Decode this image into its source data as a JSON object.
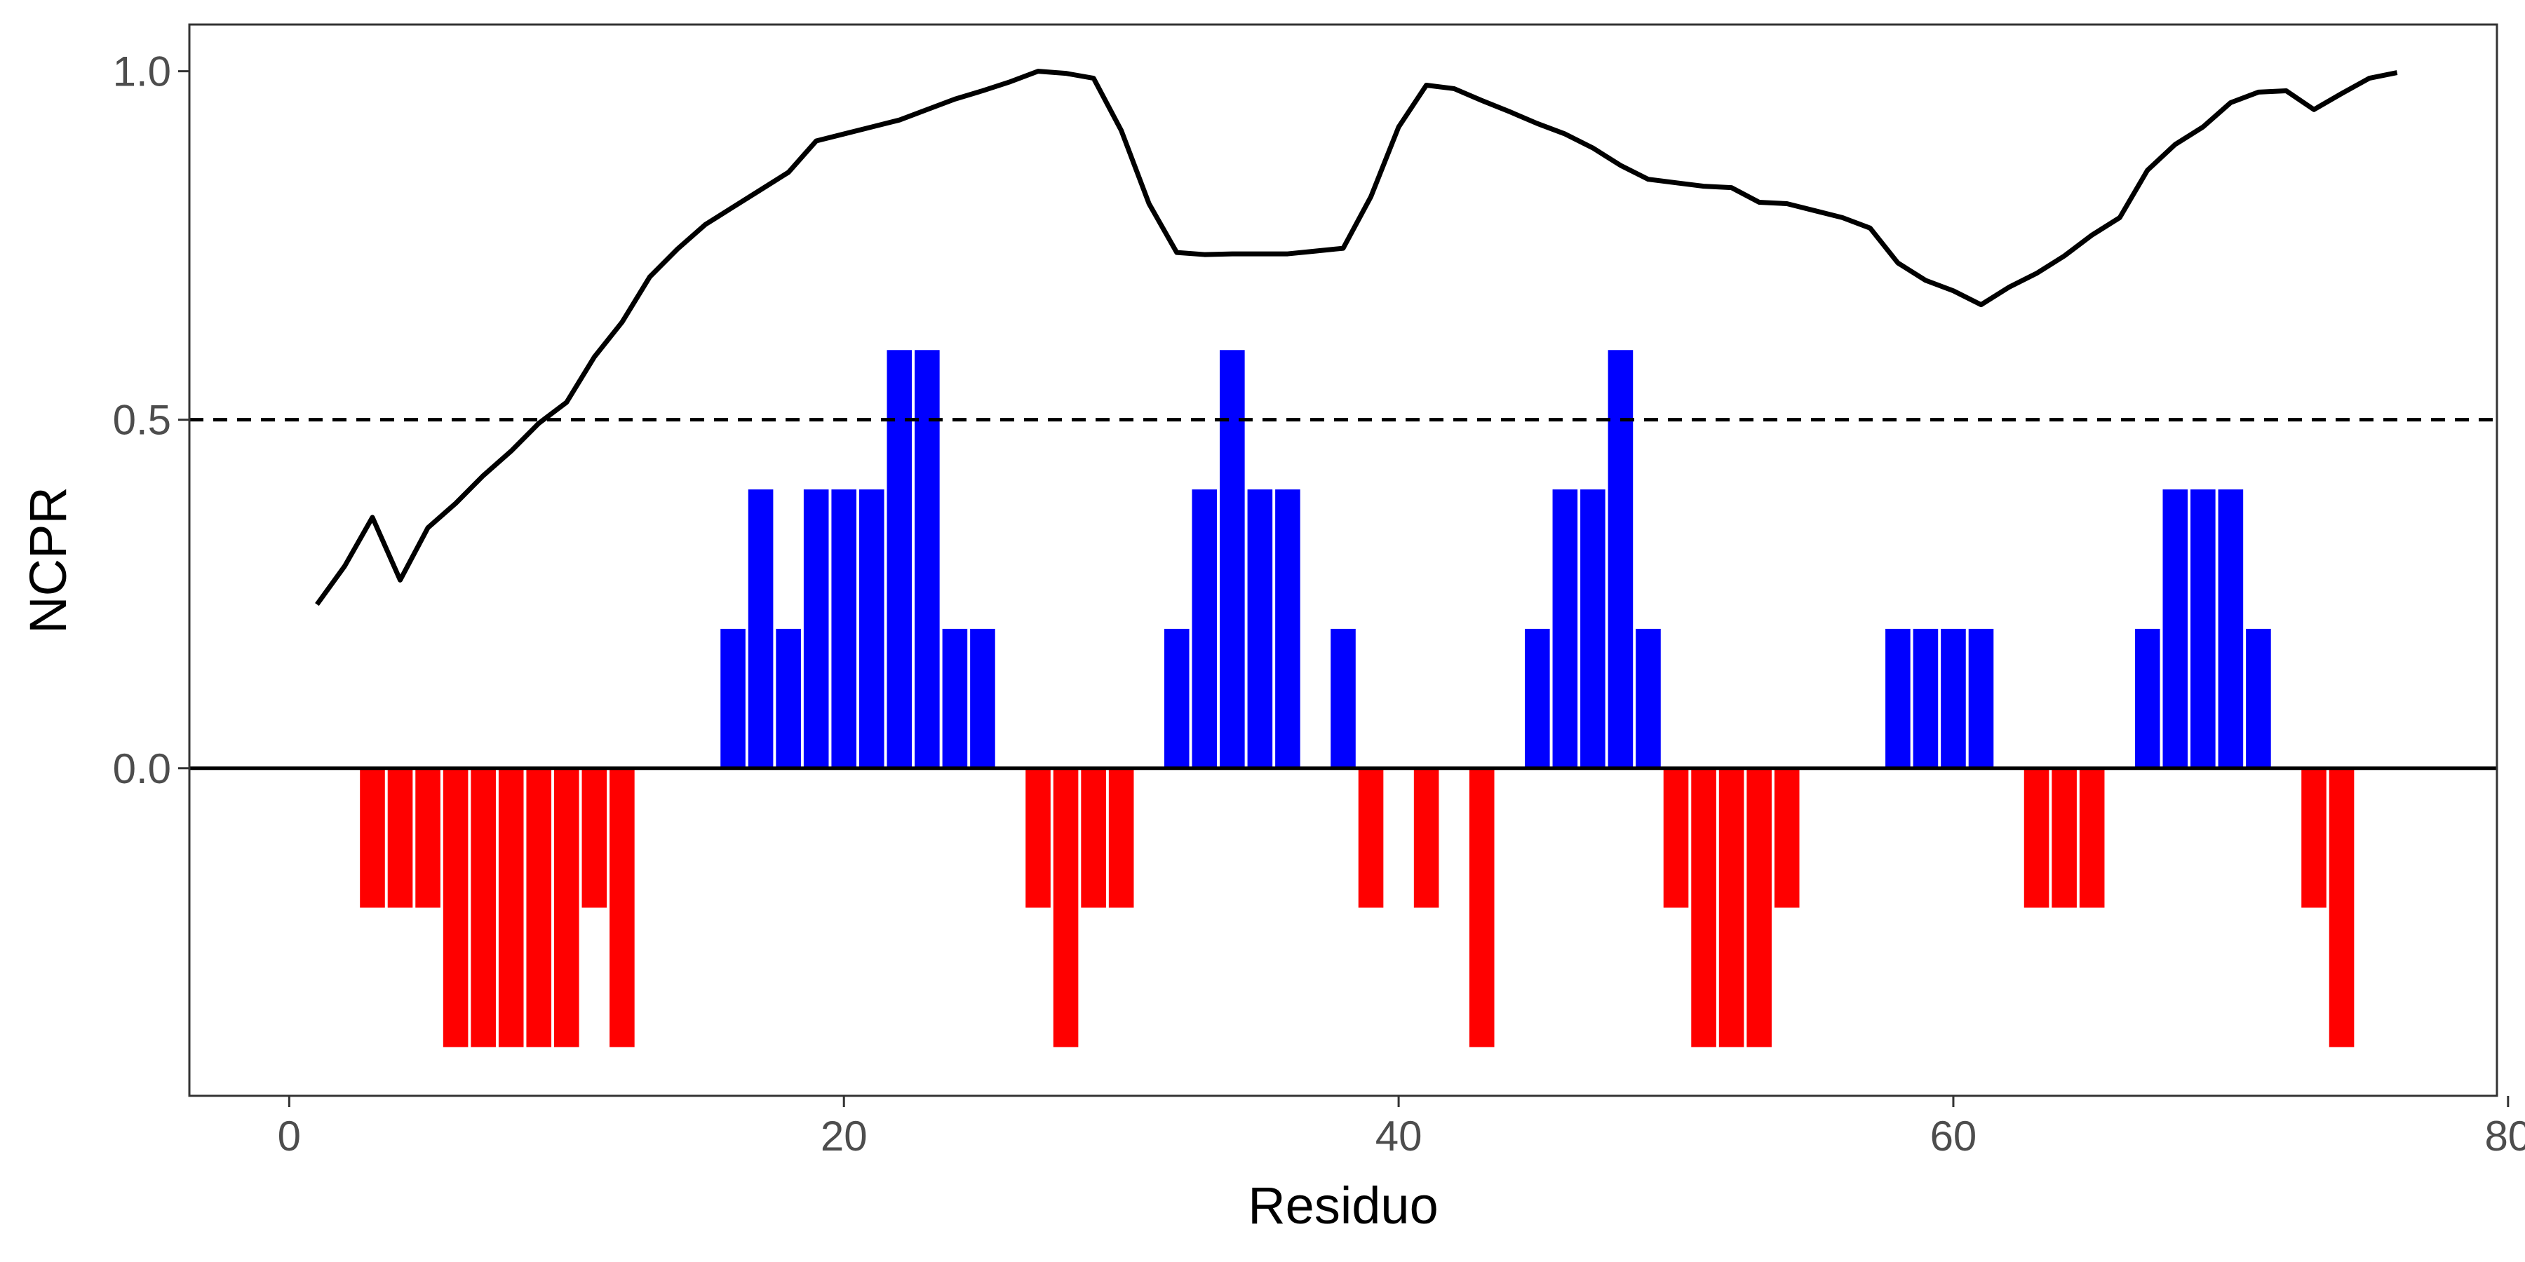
{
  "chart_data": {
    "type": "bar",
    "xlabel": "Residuo",
    "ylabel": "NCPR",
    "xlim": [
      -3.6,
      79.6
    ],
    "ylim": [
      -0.47,
      1.067
    ],
    "x_ticks": [
      0,
      20,
      40,
      60,
      80
    ],
    "x_tick_labels": [
      "0",
      "20",
      "40",
      "60",
      "80"
    ],
    "y_ticks": [
      0.0,
      0.5,
      1.0
    ],
    "y_tick_labels": [
      "0.0",
      "0.5",
      "1.0"
    ],
    "grid": false,
    "legend": "none",
    "reference_lines": [
      {
        "y": 0.0,
        "style": "solid"
      },
      {
        "y": 0.5,
        "style": "dashed"
      }
    ],
    "colors": {
      "positive": "#0000ff",
      "negative": "#ff0000",
      "line": "#000000"
    },
    "bars": {
      "x": [
        3,
        4,
        5,
        6,
        7,
        8,
        9,
        10,
        11,
        12,
        16,
        17,
        18,
        19,
        20,
        21,
        22,
        23,
        24,
        25,
        27,
        28,
        29,
        30,
        32,
        33,
        34,
        35,
        36,
        38,
        39,
        41,
        43,
        45,
        46,
        47,
        48,
        49,
        50,
        51,
        52,
        53,
        54,
        58,
        59,
        60,
        61,
        63,
        64,
        65,
        67,
        68,
        69,
        70,
        71,
        73,
        74
      ],
      "values": [
        -0.2,
        -0.2,
        -0.2,
        -0.4,
        -0.4,
        -0.4,
        -0.4,
        -0.4,
        -0.2,
        -0.4,
        0.2,
        0.4,
        0.2,
        0.4,
        0.4,
        0.4,
        0.6,
        0.6,
        0.2,
        0.2,
        -0.2,
        -0.4,
        -0.2,
        -0.2,
        0.2,
        0.4,
        0.6,
        0.4,
        0.4,
        0.2,
        -0.2,
        -0.2,
        -0.4,
        0.2,
        0.4,
        0.4,
        0.6,
        0.2,
        -0.2,
        -0.4,
        -0.4,
        -0.4,
        -0.2,
        0.2,
        0.2,
        0.2,
        0.2,
        -0.2,
        -0.2,
        -0.2,
        0.2,
        0.4,
        0.4,
        0.4,
        0.2,
        -0.2,
        -0.4
      ]
    },
    "line": {
      "x": [
        1,
        2,
        3,
        4,
        5,
        6,
        7,
        8,
        9,
        10,
        11,
        12,
        13,
        14,
        15,
        16,
        17,
        18,
        19,
        20,
        21,
        22,
        23,
        24,
        25,
        26,
        27,
        28,
        29,
        30,
        31,
        32,
        33,
        34,
        35,
        36,
        37,
        38,
        39,
        40,
        41,
        42,
        43,
        44,
        45,
        46,
        47,
        48,
        49,
        50,
        51,
        52,
        53,
        54,
        55,
        56,
        57,
        58,
        59,
        60,
        61,
        62,
        63,
        64,
        65,
        66,
        67,
        68,
        69,
        70,
        71,
        72,
        73,
        74,
        75,
        76
      ],
      "y": [
        0.235,
        0.29,
        0.36,
        0.27,
        0.345,
        0.38,
        0.42,
        0.455,
        0.495,
        0.525,
        0.59,
        0.64,
        0.705,
        0.745,
        0.78,
        0.805,
        0.83,
        0.855,
        0.9,
        0.91,
        0.92,
        0.93,
        0.945,
        0.96,
        0.972,
        0.985,
        1.0,
        0.997,
        0.99,
        0.915,
        0.81,
        0.74,
        0.737,
        0.738,
        0.738,
        0.738,
        0.742,
        0.746,
        0.82,
        0.92,
        0.98,
        0.975,
        0.958,
        0.942,
        0.925,
        0.91,
        0.89,
        0.865,
        0.845,
        0.84,
        0.835,
        0.833,
        0.812,
        0.81,
        0.8,
        0.79,
        0.775,
        0.725,
        0.7,
        0.685,
        0.665,
        0.69,
        0.71,
        0.735,
        0.765,
        0.79,
        0.858,
        0.895,
        0.92,
        0.955,
        0.97,
        0.972,
        0.945,
        0.968,
        0.99,
        0.998
      ]
    }
  }
}
